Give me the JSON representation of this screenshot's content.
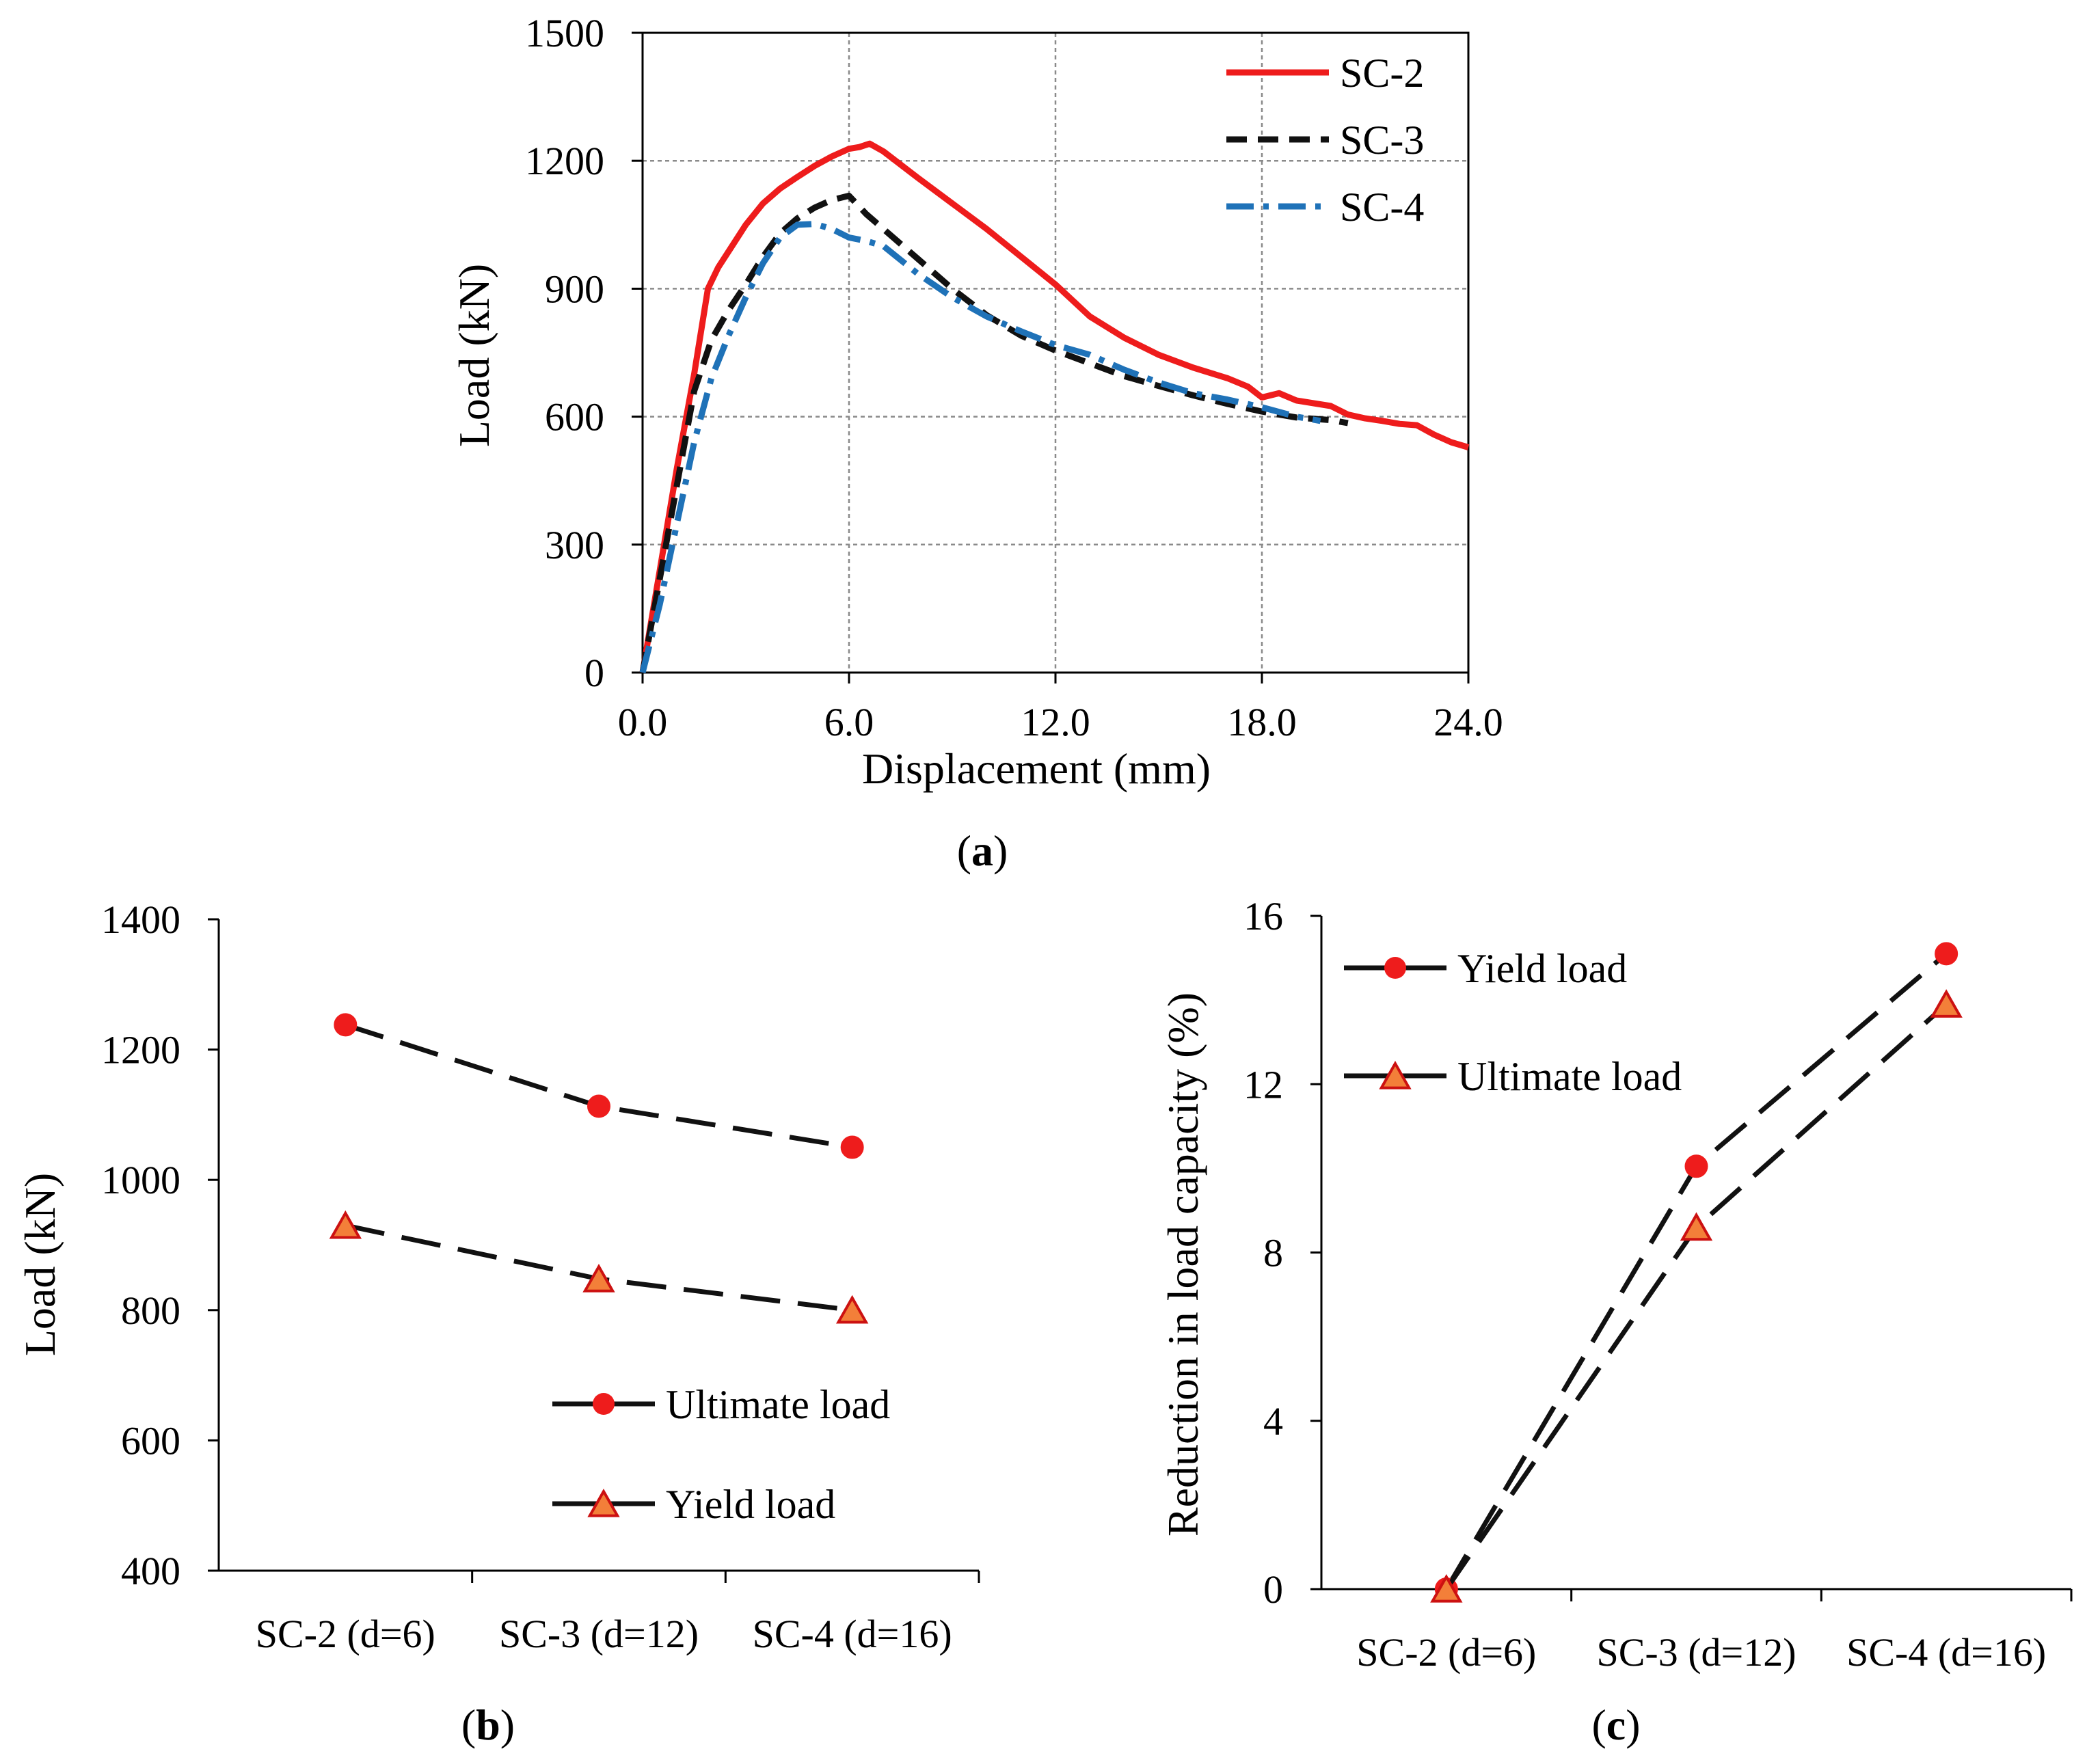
{
  "chart_data": [
    {
      "id": "a",
      "type": "line",
      "panel_label": "(a)",
      "panel_letter": "a",
      "xlabel": "Displacement (mm)",
      "ylabel": "Load (kN)",
      "xlim": [
        0,
        24
      ],
      "ylim": [
        0,
        1500
      ],
      "xticks": [
        0,
        6,
        12,
        18,
        24
      ],
      "xtick_labels": [
        "0.0",
        "6.0",
        "12.0",
        "18.0",
        "24.0"
      ],
      "yticks": [
        0,
        300,
        600,
        900,
        1200,
        1500
      ],
      "ytick_labels": [
        "0",
        "300",
        "600",
        "900",
        "1200",
        "1500"
      ],
      "grid": true,
      "legend_position": "top-right",
      "series": [
        {
          "name": "SC-2",
          "color": "#ee1c1c",
          "style": "solid",
          "points": [
            [
              0,
              0
            ],
            [
              0.5,
              240
            ],
            [
              1,
              480
            ],
            [
              1.5,
              700
            ],
            [
              1.9,
              900
            ],
            [
              2.2,
              950
            ],
            [
              2.6,
              1000
            ],
            [
              3,
              1050
            ],
            [
              3.5,
              1100
            ],
            [
              4,
              1135
            ],
            [
              4.5,
              1162
            ],
            [
              5,
              1188
            ],
            [
              5.5,
              1210
            ],
            [
              6,
              1228
            ],
            [
              6.3,
              1232
            ],
            [
              6.6,
              1240
            ],
            [
              7,
              1222
            ],
            [
              8,
              1160
            ],
            [
              9,
              1100
            ],
            [
              10,
              1040
            ],
            [
              11,
              975
            ],
            [
              12,
              910
            ],
            [
              13,
              835
            ],
            [
              14,
              785
            ],
            [
              15,
              745
            ],
            [
              16,
              715
            ],
            [
              17,
              690
            ],
            [
              17.6,
              670
            ],
            [
              18,
              645
            ],
            [
              18.5,
              655
            ],
            [
              19,
              638
            ],
            [
              20,
              625
            ],
            [
              20.5,
              605
            ],
            [
              21,
              596
            ],
            [
              21.5,
              590
            ],
            [
              22,
              583
            ],
            [
              22.5,
              580
            ],
            [
              23,
              558
            ],
            [
              23.5,
              540
            ],
            [
              24,
              528
            ]
          ]
        },
        {
          "name": "SC-3",
          "color": "#111111",
          "style": "dashed",
          "points": [
            [
              0,
              0
            ],
            [
              0.5,
              220
            ],
            [
              1,
              440
            ],
            [
              1.5,
              660
            ],
            [
              2,
              780
            ],
            [
              2.5,
              850
            ],
            [
              3,
              910
            ],
            [
              3.5,
              975
            ],
            [
              4,
              1030
            ],
            [
              4.5,
              1065
            ],
            [
              5,
              1090
            ],
            [
              5.5,
              1108
            ],
            [
              6,
              1118
            ],
            [
              6.5,
              1075
            ],
            [
              7,
              1040
            ],
            [
              8,
              970
            ],
            [
              9,
              900
            ],
            [
              10,
              838
            ],
            [
              11,
              790
            ],
            [
              12,
              755
            ],
            [
              13,
              725
            ],
            [
              14,
              695
            ],
            [
              15,
              672
            ],
            [
              16,
              650
            ],
            [
              17,
              630
            ],
            [
              18,
              612
            ],
            [
              19,
              598
            ],
            [
              20,
              592
            ],
            [
              20.5,
              585
            ]
          ]
        },
        {
          "name": "SC-4",
          "color": "#1f72b8",
          "style": "dashdot",
          "points": [
            [
              0,
              0
            ],
            [
              0.5,
              160
            ],
            [
              1,
              350
            ],
            [
              1.5,
              540
            ],
            [
              2,
              690
            ],
            [
              2.5,
              790
            ],
            [
              3,
              880
            ],
            [
              3.5,
              960
            ],
            [
              4,
              1020
            ],
            [
              4.5,
              1050
            ],
            [
              5,
              1052
            ],
            [
              5.5,
              1040
            ],
            [
              6,
              1020
            ],
            [
              6.5,
              1012
            ],
            [
              7,
              1000
            ],
            [
              8,
              935
            ],
            [
              9,
              880
            ],
            [
              10,
              835
            ],
            [
              11,
              800
            ],
            [
              12,
              768
            ],
            [
              13,
              745
            ],
            [
              14,
              710
            ],
            [
              15,
              680
            ],
            [
              16,
              655
            ],
            [
              17,
              640
            ],
            [
              18,
              622
            ],
            [
              19,
              600
            ],
            [
              19.7,
              590
            ]
          ]
        }
      ]
    },
    {
      "id": "b",
      "type": "line",
      "panel_label": "(b)",
      "panel_letter": "b",
      "xlabel": "",
      "ylabel": "Load (kN)",
      "categories": [
        "SC-2 (d=6)",
        "SC-3 (d=12)",
        "SC-4 (d=16)"
      ],
      "ylim": [
        400,
        1400
      ],
      "yticks": [
        400,
        600,
        800,
        1000,
        1200,
        1400
      ],
      "ytick_labels": [
        "400",
        "600",
        "800",
        "1000",
        "1200",
        "1400"
      ],
      "grid": false,
      "legend_position": "bottom-right",
      "series": [
        {
          "name": "Ultimate load",
          "marker": "circle",
          "values": [
            1238,
            1113,
            1050
          ]
        },
        {
          "name": "Yield load",
          "marker": "triangle",
          "values": [
            930,
            848,
            800
          ]
        }
      ]
    },
    {
      "id": "c",
      "type": "line",
      "panel_label": "(c)",
      "panel_letter": "c",
      "xlabel": "",
      "ylabel": "Reduction in load capacity (%)",
      "categories": [
        "SC-2 (d=6)",
        "SC-3 (d=12)",
        "SC-4 (d=16)"
      ],
      "ylim": [
        0,
        16
      ],
      "yticks": [
        0,
        4,
        8,
        12,
        16
      ],
      "ytick_labels": [
        "0",
        "4",
        "8",
        "12",
        "16"
      ],
      "grid": false,
      "legend_position": "top-left",
      "series": [
        {
          "name": "Yield load",
          "marker": "circle",
          "values": [
            0,
            10.05,
            15.1
          ]
        },
        {
          "name": "Ultimate load",
          "marker": "triangle",
          "values": [
            0,
            8.6,
            13.9
          ]
        }
      ]
    }
  ],
  "colors": {
    "marker_fill_circle": "#ee1c1c",
    "marker_fill_triangle": "#f37f39",
    "marker_edge_triangle": "#cc1111",
    "connector_line": "#111111"
  }
}
